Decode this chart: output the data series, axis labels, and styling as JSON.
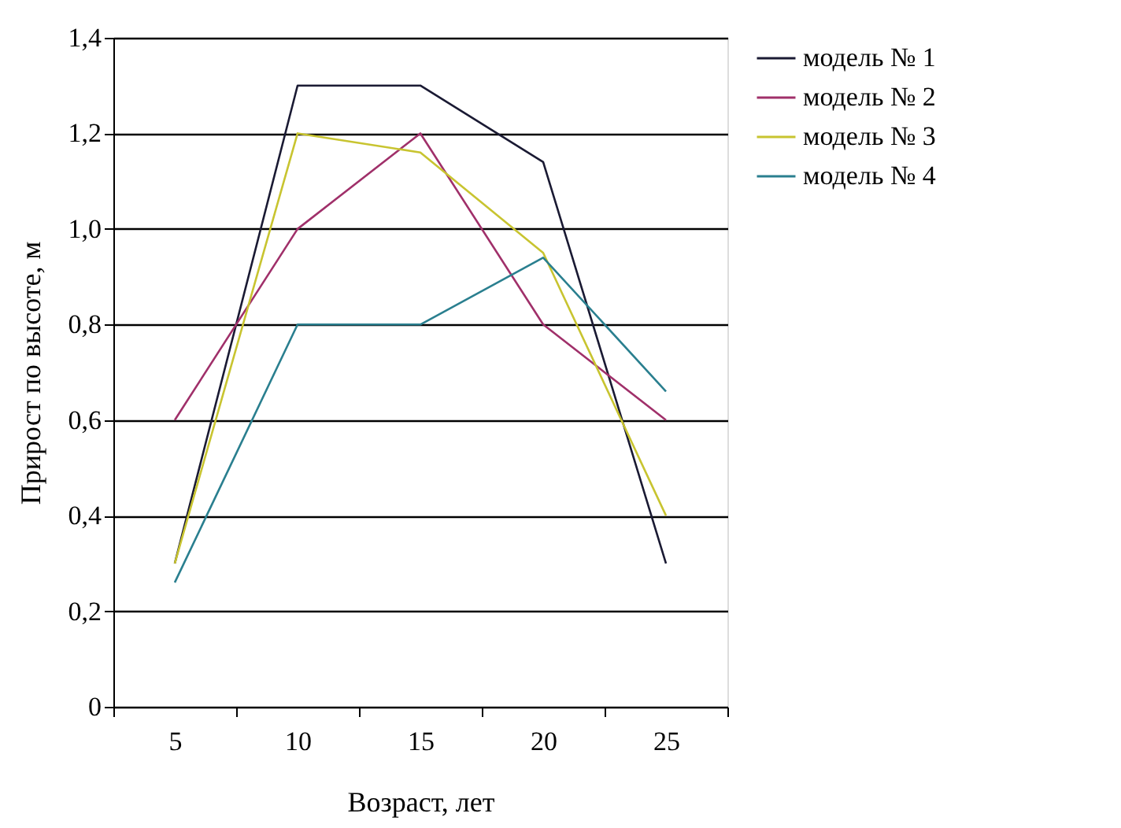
{
  "chart_data": {
    "type": "line",
    "xlabel": "Возраст, лет",
    "ylabel": "Прирост по высоте, м",
    "categories": [
      "5",
      "10",
      "15",
      "20",
      "25"
    ],
    "series": [
      {
        "name": "модель № 1",
        "color": "#1a1a33",
        "values": [
          0.3,
          1.3,
          1.3,
          1.14,
          0.3
        ]
      },
      {
        "name": "модель № 2",
        "color": "#a0306a",
        "values": [
          0.6,
          1.0,
          1.2,
          0.8,
          0.6
        ]
      },
      {
        "name": "модель № 3",
        "color": "#c8c430",
        "values": [
          0.3,
          1.2,
          1.16,
          0.95,
          0.4
        ]
      },
      {
        "name": "модель № 4",
        "color": "#2a7f8f",
        "values": [
          0.26,
          0.8,
          0.8,
          0.94,
          0.66
        ]
      }
    ],
    "ylim": [
      0,
      1.4
    ],
    "yticks": [
      0,
      {
        "value": 0.2,
        "label": "0,2"
      },
      {
        "value": 0.4,
        "label": "0,4"
      },
      {
        "value": 0.6,
        "label": "0,6"
      },
      {
        "value": 0.8,
        "label": "0,8"
      },
      {
        "value": 1.0,
        "label": "1,0"
      },
      {
        "value": 1.2,
        "label": "1,2"
      },
      {
        "value": 1.4,
        "label": "1,4"
      }
    ],
    "grid": "y",
    "legend": "right",
    "marker": "none",
    "line_style": "solid"
  }
}
